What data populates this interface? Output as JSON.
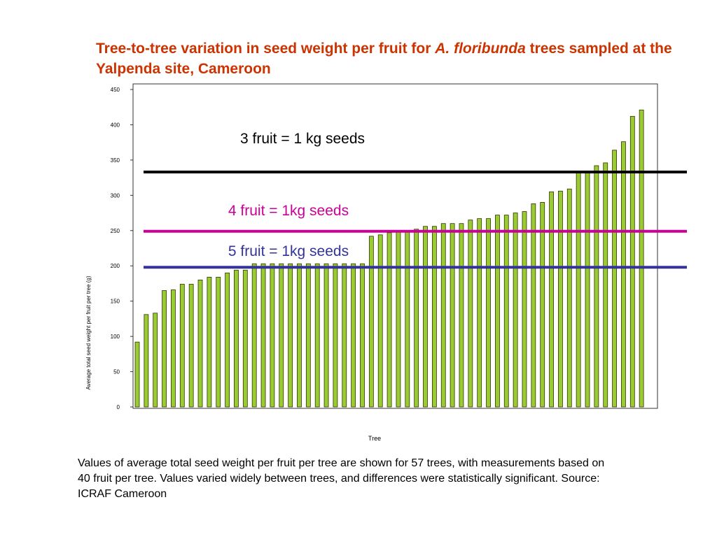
{
  "title": {
    "text_before": "Tree-to-tree variation in seed weight per fruit for ",
    "species": "A. floribunda",
    "text_after": " trees sampled at the Yalpenda site, Cameroon"
  },
  "caption": "Values of average total seed weight per fruit per tree are shown for 57 trees, with measurements based on 40 fruit per tree. Values varied widely between trees, and differences were statistically significant. Source: ICRAF Cameroon",
  "colors": {
    "title": "#cc3300",
    "bar_fill": "#99cc33",
    "bar_stroke": "#333300",
    "line_3fruit": "#000000",
    "line_4fruit": "#cc0099",
    "line_5fruit": "#333399"
  },
  "chart_data": {
    "type": "bar",
    "xlabel": "Tree",
    "ylabel": "Average total seed weight per fruit per tree (g)",
    "ylim": [
      0,
      450
    ],
    "yticks": [
      "0",
      "50",
      "100",
      "150",
      "200",
      "250",
      "300",
      "350",
      "400",
      "450"
    ],
    "grid": false,
    "values": [
      92,
      131,
      133,
      165,
      166,
      174,
      174,
      180,
      184,
      184,
      190,
      194,
      194,
      203,
      203,
      203,
      203,
      203,
      203,
      203,
      203,
      203,
      203,
      203,
      203,
      203,
      242,
      244,
      247,
      248,
      249,
      252,
      256,
      256,
      260,
      260,
      260,
      265,
      267,
      267,
      272,
      272,
      275,
      277,
      288,
      290,
      305,
      306,
      309,
      332,
      333,
      342,
      346,
      364,
      376,
      412,
      421
    ],
    "reference_lines": [
      {
        "label": "3 fruit = 1 kg seeds",
        "y": 333,
        "color": "#000000"
      },
      {
        "label": "4 fruit = 1kg seeds",
        "y": 249,
        "color": "#cc0099"
      },
      {
        "label": "5 fruit = 1kg seeds",
        "y": 198,
        "color": "#333399"
      }
    ]
  }
}
